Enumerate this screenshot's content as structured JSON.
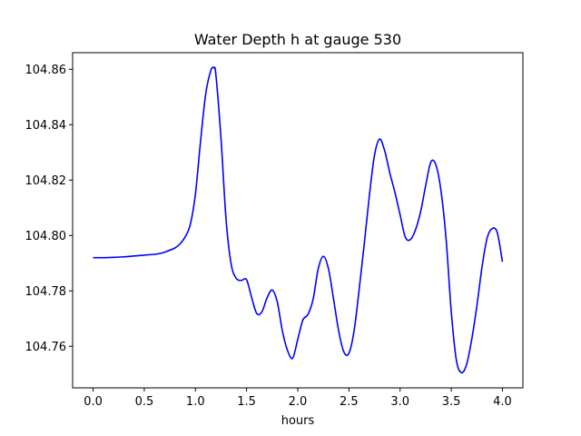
{
  "chart_data": {
    "type": "line",
    "title": "Water Depth h at gauge 530",
    "xlabel": "hours",
    "ylabel": "",
    "xlim": [
      -0.2,
      4.2
    ],
    "ylim": [
      104.745,
      104.866
    ],
    "xticks": [
      0.0,
      0.5,
      1.0,
      1.5,
      2.0,
      2.5,
      3.0,
      3.5,
      4.0
    ],
    "xtick_labels": [
      "0.0",
      "0.5",
      "1.0",
      "1.5",
      "2.0",
      "2.5",
      "3.0",
      "3.5",
      "4.0"
    ],
    "yticks": [
      104.76,
      104.78,
      104.8,
      104.82,
      104.84,
      104.86
    ],
    "ytick_labels": [
      "104.76",
      "104.78",
      "104.80",
      "104.82",
      "104.84",
      "104.86"
    ],
    "grid": false,
    "series": [
      {
        "color": "#0000ff",
        "x": [
          0.0,
          0.1,
          0.2,
          0.3,
          0.4,
          0.5,
          0.6,
          0.65,
          0.7,
          0.8,
          0.85,
          0.9,
          0.95,
          1.0,
          1.05,
          1.1,
          1.15,
          1.18,
          1.2,
          1.25,
          1.3,
          1.35,
          1.4,
          1.45,
          1.5,
          1.55,
          1.6,
          1.65,
          1.7,
          1.75,
          1.8,
          1.85,
          1.9,
          1.95,
          2.0,
          2.05,
          2.1,
          2.15,
          2.2,
          2.25,
          2.3,
          2.35,
          2.4,
          2.45,
          2.5,
          2.55,
          2.6,
          2.65,
          2.7,
          2.75,
          2.8,
          2.85,
          2.9,
          2.95,
          3.0,
          3.05,
          3.1,
          3.15,
          3.2,
          3.25,
          3.3,
          3.35,
          3.4,
          3.45,
          3.5,
          3.55,
          3.6,
          3.65,
          3.7,
          3.75,
          3.8,
          3.85,
          3.9,
          3.95,
          4.0
        ],
        "y": [
          104.792,
          104.792,
          104.7921,
          104.7923,
          104.7926,
          104.7929,
          104.7932,
          104.7935,
          104.794,
          104.7955,
          104.797,
          104.7995,
          104.804,
          104.815,
          104.834,
          104.851,
          104.8595,
          104.8605,
          104.858,
          104.835,
          104.8055,
          104.7895,
          104.7845,
          104.7838,
          104.784,
          104.7775,
          104.7718,
          104.7725,
          104.7775,
          104.7803,
          104.776,
          104.7655,
          104.7585,
          104.7557,
          104.7625,
          104.7695,
          104.7715,
          104.777,
          104.788,
          104.7925,
          104.788,
          104.777,
          104.7655,
          104.758,
          104.7575,
          104.7655,
          104.7805,
          104.797,
          104.8145,
          104.829,
          104.8348,
          104.8305,
          104.8225,
          104.8155,
          104.8075,
          104.7995,
          104.7985,
          104.802,
          104.8085,
          104.818,
          104.8265,
          104.8255,
          104.816,
          104.7985,
          104.7725,
          104.755,
          104.7505,
          104.7535,
          104.7625,
          104.7745,
          104.7885,
          104.799,
          104.8025,
          104.801,
          104.7905
        ]
      }
    ]
  }
}
